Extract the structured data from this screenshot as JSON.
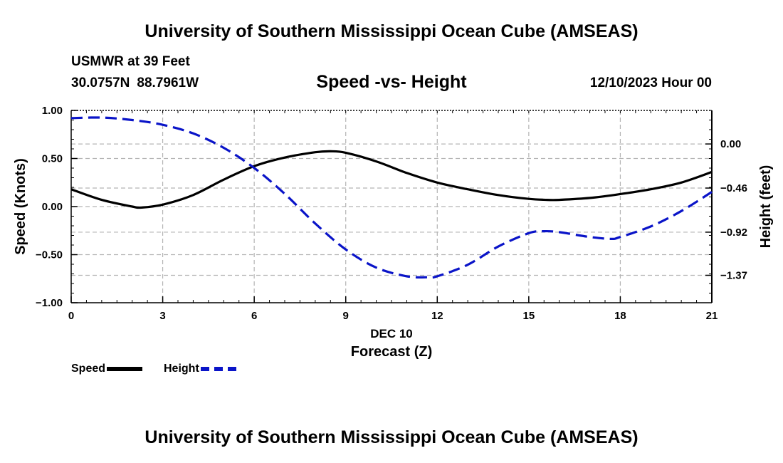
{
  "header": {
    "title": "University of Southern Mississippi Ocean Cube (AMSEAS)",
    "station": "USMWR at 39 Feet",
    "lat": "30.0757N",
    "lon": "88.7961W",
    "subtitle": "Speed -vs- Height",
    "datetime": "12/10/2023 Hour 00"
  },
  "footer": {
    "title": "University of Southern Mississippi Ocean Cube (AMSEAS)"
  },
  "legend": {
    "speed_label": "Speed",
    "height_label": "Height"
  },
  "colors": {
    "speed": "#000000",
    "height": "#0a14c8",
    "grid": "#b4b4b4"
  },
  "chart_data": {
    "type": "line",
    "title": "Speed -vs- Height",
    "xlabel": "Forecast (Z)",
    "date_label": "DEC 10",
    "ylabel_left": "Speed (Knots)",
    "ylabel_right": "Height (feet)",
    "x_range": [
      0,
      21
    ],
    "ylim_left": [
      -1.0,
      1.0
    ],
    "ylim_right": [
      -1.656,
      0.35
    ],
    "x_ticks": [
      0,
      3,
      6,
      9,
      12,
      15,
      18,
      21
    ],
    "x_tick_labels": [
      "0",
      "3",
      "6",
      "9",
      "12",
      "15",
      "18",
      "21"
    ],
    "left_ticks": [
      1.0,
      0.5,
      0.0,
      -0.5,
      -1.0
    ],
    "left_tick_labels": [
      "1.00",
      "0.50",
      "0.00",
      "−0.50",
      "−1.00"
    ],
    "right_ticks": [
      0.0,
      -0.46,
      -0.92,
      -1.37
    ],
    "right_tick_labels": [
      "0.00",
      "−0.46",
      "−0.92",
      "−1.37"
    ],
    "grid": true,
    "series": [
      {
        "name": "Speed",
        "axis": "left",
        "style": "solid",
        "x": [
          0,
          1,
          2,
          2.3,
          3,
          4,
          5,
          6,
          7,
          8,
          8.5,
          9,
          10,
          11,
          12,
          13,
          14,
          15,
          15.6,
          16,
          17,
          18,
          19,
          20,
          21
        ],
        "values": [
          0.18,
          0.07,
          0.0,
          -0.01,
          0.02,
          0.12,
          0.28,
          0.42,
          0.51,
          0.565,
          0.575,
          0.56,
          0.47,
          0.35,
          0.25,
          0.18,
          0.12,
          0.08,
          0.07,
          0.07,
          0.09,
          0.13,
          0.18,
          0.25,
          0.36
        ]
      },
      {
        "name": "Height",
        "axis": "right",
        "style": "dashed",
        "x": [
          0,
          1,
          2,
          3,
          4,
          5,
          6,
          7,
          8,
          9,
          10,
          11,
          11.7,
          12,
          13,
          14,
          15,
          15.5,
          16,
          17,
          17.7,
          18,
          19,
          20,
          21
        ],
        "values": [
          0.27,
          0.275,
          0.25,
          0.2,
          0.11,
          -0.04,
          -0.25,
          -0.52,
          -0.83,
          -1.1,
          -1.29,
          -1.38,
          -1.39,
          -1.38,
          -1.26,
          -1.07,
          -0.93,
          -0.91,
          -0.92,
          -0.97,
          -0.99,
          -0.97,
          -0.86,
          -0.7,
          -0.5
        ]
      }
    ]
  }
}
